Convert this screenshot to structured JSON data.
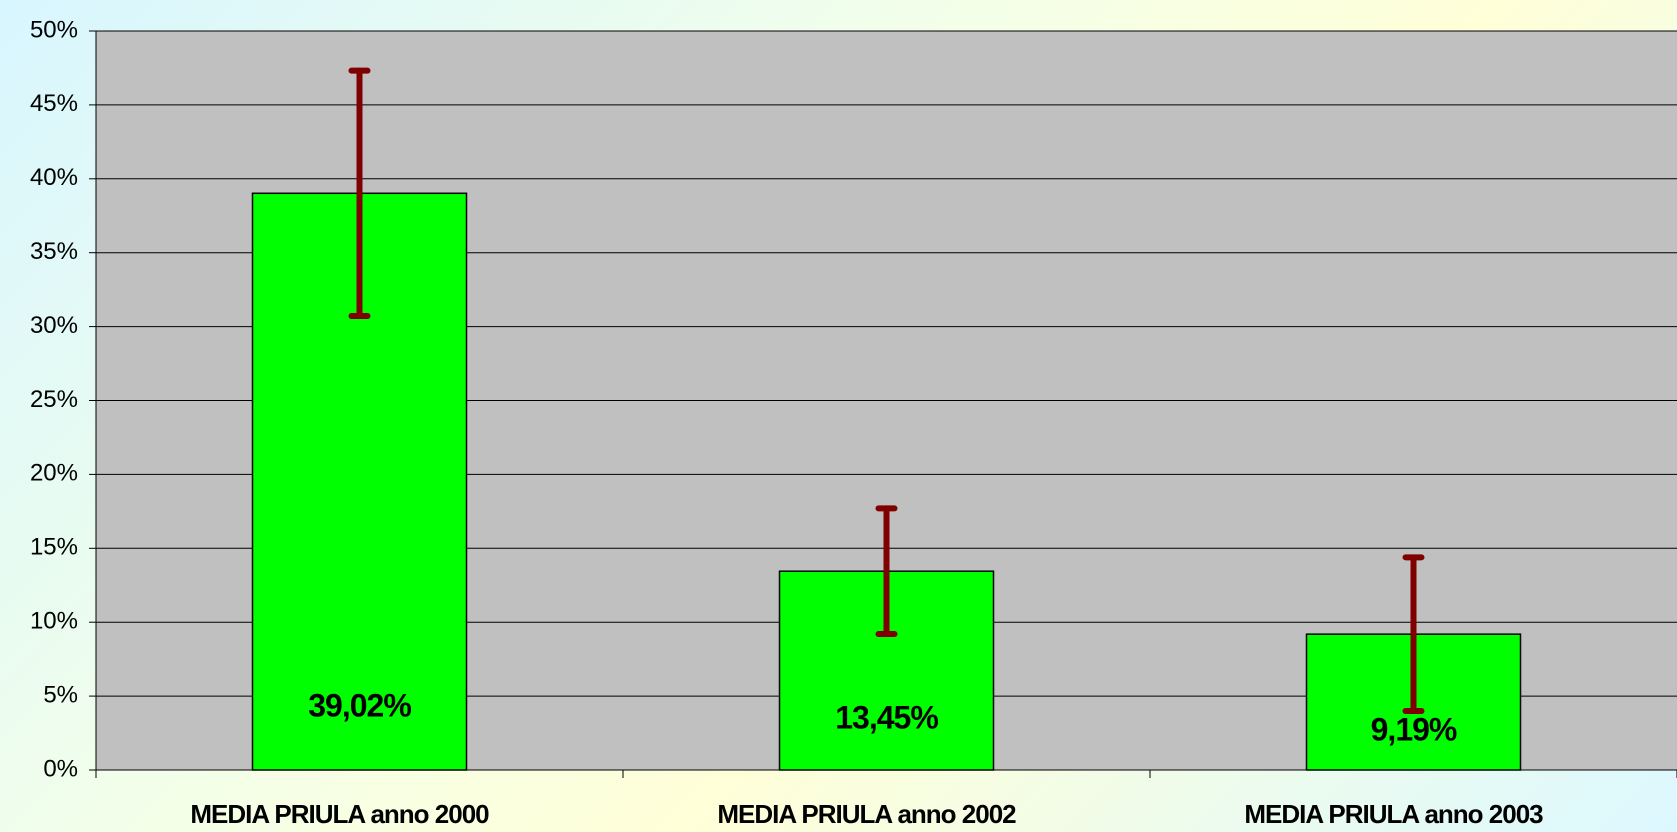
{
  "chart_data": {
    "type": "bar",
    "categories": [
      "MEDIA PRIULA anno 2000",
      "MEDIA PRIULA anno 2002",
      "MEDIA PRIULA anno 2003"
    ],
    "values": [
      39.02,
      13.45,
      9.19
    ],
    "value_labels": [
      "39,02%",
      "13,45%",
      "9,19%"
    ],
    "errors": [
      8.3,
      4.25,
      5.2
    ],
    "color": "#00ff00",
    "error_color": "#800000",
    "plot_color": "#c0c0c0",
    "ylim": [
      0,
      50
    ],
    "yticks": [
      {
        "value": 0,
        "label": "0%"
      },
      {
        "value": 5,
        "label": "5%"
      },
      {
        "value": 10,
        "label": "10%"
      },
      {
        "value": 15,
        "label": "15%"
      },
      {
        "value": 20,
        "label": "20%"
      },
      {
        "value": 25,
        "label": "25%"
      },
      {
        "value": 30,
        "label": "30%"
      },
      {
        "value": 35,
        "label": "35%"
      },
      {
        "value": 40,
        "label": "40%"
      },
      {
        "value": 45,
        "label": "45%"
      },
      {
        "value": 50,
        "label": "50%"
      }
    ],
    "grid": true
  }
}
